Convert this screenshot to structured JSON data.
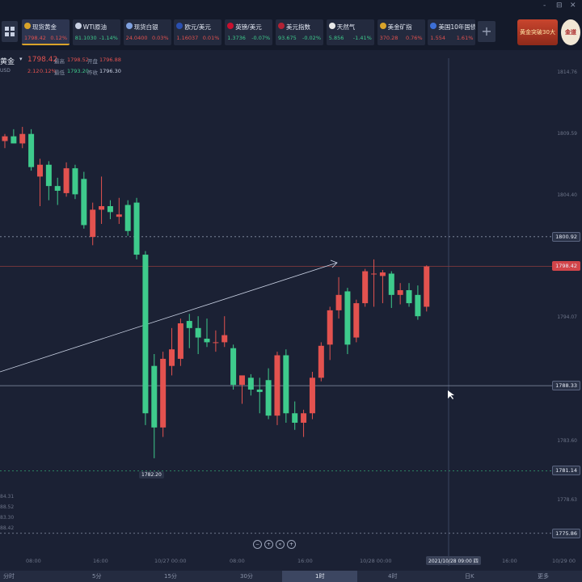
{
  "window_controls": [
    "-",
    "⊟",
    "✕"
  ],
  "tickers": [
    {
      "name": "现货黄金",
      "price": "1798.42",
      "change": "0.12%",
      "dir": "up",
      "icon_color": "#d9a32a"
    },
    {
      "name": "WTI原油",
      "price": "81.1030",
      "change": "-1.14%",
      "dir": "dn",
      "icon_color": "#c9d1e3"
    },
    {
      "name": "现货白银",
      "price": "24.0400",
      "change": "0.03%",
      "dir": "up",
      "icon_color": "#7fa1e0"
    },
    {
      "name": "欧元/美元",
      "price": "1.16037",
      "change": "0.01%",
      "dir": "up",
      "icon_color": "#2a4fb0"
    },
    {
      "name": "英镑/美元",
      "price": "1.3736",
      "change": "-0.07%",
      "dir": "dn",
      "icon_color": "#c8102e"
    },
    {
      "name": "美元指数",
      "price": "93.675",
      "change": "-0.02%",
      "dir": "dn",
      "icon_color": "#b22234"
    },
    {
      "name": "天然气",
      "price": "5.856",
      "change": "-1.41%",
      "dir": "dn",
      "icon_color": "#e8e8e8"
    },
    {
      "name": "美金矿指",
      "price": "370.28",
      "change": "0.76%",
      "dir": "up",
      "icon_color": "#d9a32a"
    },
    {
      "name": "美国10年国债...",
      "price": "1.554",
      "change": "1.61%",
      "dir": "up",
      "icon_color": "#3c6fd6"
    }
  ],
  "promo_text": "黄金突破30大",
  "logo_text": "金道",
  "symbol": {
    "name": "黄金",
    "unit": "USD",
    "last": "1798.42",
    "change": "2.12",
    "change_pct": "0.12%",
    "open_label": "最高",
    "open": "1798.52",
    "high_label": "开盘",
    "high": "1796.88",
    "low_label": "最低",
    "low": "1793.20",
    "prev_label": "昨收",
    "prev": "1796.30"
  },
  "left_axis_partial": [
    "84.31",
    "88.52",
    "83.30",
    "88.42"
  ],
  "chart_data": {
    "type": "candlestick",
    "ylim": [
      1775.5,
      1816
    ],
    "price_axis_labels": [
      "1814.76",
      "1809.59",
      "1804.40",
      "1800.92",
      "1798.42",
      "1794.07",
      "1788.33",
      "1783.60",
      "1781.14",
      "1778.63",
      "1775.86"
    ],
    "hlines": [
      {
        "value": 1800.92,
        "style": "dashed",
        "label": "1800.92"
      },
      {
        "value": 1798.42,
        "style": "solid-red",
        "label": "1798.42"
      },
      {
        "value": 1788.33,
        "style": "solid",
        "label": "1788.33"
      },
      {
        "value": 1781.14,
        "style": "dashed-green",
        "label": "1781.14"
      },
      {
        "value": 1775.86,
        "style": "dashed",
        "label": "1775.86"
      }
    ],
    "low_marker": "1782.20",
    "crosshair_time": "2021/10/28 09:00 四",
    "x_labels": [
      "08:00",
      "16:00",
      "10/27 00:00",
      "08:00",
      "16:00",
      "10/28 00:00",
      "16:00",
      "10/29 00"
    ],
    "candles": [
      [
        1809.0,
        1809.6,
        1808.4,
        1809.4
      ],
      [
        1809.4,
        1810.0,
        1808.8,
        1808.8
      ],
      [
        1808.8,
        1810.2,
        1808.4,
        1809.6
      ],
      [
        1809.6,
        1810.0,
        1806.5,
        1806.8
      ],
      [
        1806.0,
        1807.5,
        1803.5,
        1807.0
      ],
      [
        1807.0,
        1807.3,
        1804.0,
        1805.2
      ],
      [
        1805.2,
        1805.9,
        1803.6,
        1804.8
      ],
      [
        1804.6,
        1807.2,
        1804.3,
        1806.7
      ],
      [
        1806.7,
        1807.0,
        1804.1,
        1804.5
      ],
      [
        1805.8,
        1806.4,
        1801.6,
        1801.9
      ],
      [
        1800.9,
        1803.8,
        1800.2,
        1803.2
      ],
      [
        1803.2,
        1806.0,
        1802.0,
        1803.5
      ],
      [
        1803.5,
        1804.0,
        1802.4,
        1803.0
      ],
      [
        1802.6,
        1804.2,
        1802.0,
        1802.8
      ],
      [
        1803.6,
        1804.0,
        1801.0,
        1801.4
      ],
      [
        1803.8,
        1804.2,
        1799.0,
        1799.4
      ],
      [
        1799.4,
        1799.7,
        1785.0,
        1786.0
      ],
      [
        1790.0,
        1791.0,
        1782.2,
        1784.8
      ],
      [
        1784.8,
        1791.2,
        1784.0,
        1790.6
      ],
      [
        1790.0,
        1793.2,
        1789.2,
        1791.4
      ],
      [
        1790.6,
        1794.0,
        1790.0,
        1793.6
      ],
      [
        1793.8,
        1794.4,
        1791.5,
        1793.2
      ],
      [
        1793.2,
        1794.2,
        1791.0,
        1792.4
      ],
      [
        1792.3,
        1794.0,
        1791.6,
        1792.0
      ],
      [
        1792.0,
        1793.0,
        1791.2,
        1792.0
      ],
      [
        1792.0,
        1794.2,
        1791.6,
        1792.6
      ],
      [
        1791.5,
        1791.8,
        1788.0,
        1788.4
      ],
      [
        1788.4,
        1789.0,
        1786.8,
        1789.2
      ],
      [
        1789.0,
        1789.3,
        1787.5,
        1788.0
      ],
      [
        1788.0,
        1789.0,
        1786.0,
        1787.8
      ],
      [
        1788.8,
        1789.8,
        1785.5,
        1785.8
      ],
      [
        1785.8,
        1791.2,
        1785.0,
        1790.9
      ],
      [
        1790.9,
        1791.4,
        1785.2,
        1786.0
      ],
      [
        1786.0,
        1787.0,
        1784.6,
        1785.2
      ],
      [
        1785.2,
        1786.3,
        1784.0,
        1786.0
      ],
      [
        1786.0,
        1789.5,
        1785.5,
        1789.0
      ],
      [
        1789.0,
        1792.0,
        1788.7,
        1791.7
      ],
      [
        1791.8,
        1795.0,
        1790.5,
        1794.7
      ],
      [
        1794.7,
        1797.5,
        1794.0,
        1796.0
      ],
      [
        1796.3,
        1796.6,
        1791.0,
        1791.8
      ],
      [
        1792.4,
        1795.6,
        1792.0,
        1795.3
      ],
      [
        1795.3,
        1798.2,
        1795.0,
        1798.0
      ],
      [
        1797.8,
        1799.0,
        1795.0,
        1797.8
      ],
      [
        1797.6,
        1798.1,
        1795.3,
        1797.9
      ],
      [
        1797.8,
        1798.0,
        1794.9,
        1796.0
      ],
      [
        1796.0,
        1797.0,
        1795.2,
        1796.4
      ],
      [
        1796.4,
        1797.0,
        1795.0,
        1795.3
      ],
      [
        1796.0,
        1796.8,
        1793.9,
        1794.2
      ],
      [
        1795.0,
        1798.5,
        1794.6,
        1798.4
      ]
    ]
  },
  "nav_buttons": [
    "−",
    "+",
    "«",
    "+"
  ],
  "timeframes": [
    "分时",
    "5分",
    "15分",
    "30分",
    "1时",
    "4时",
    "日K",
    "更多"
  ],
  "active_timeframe": "1时"
}
